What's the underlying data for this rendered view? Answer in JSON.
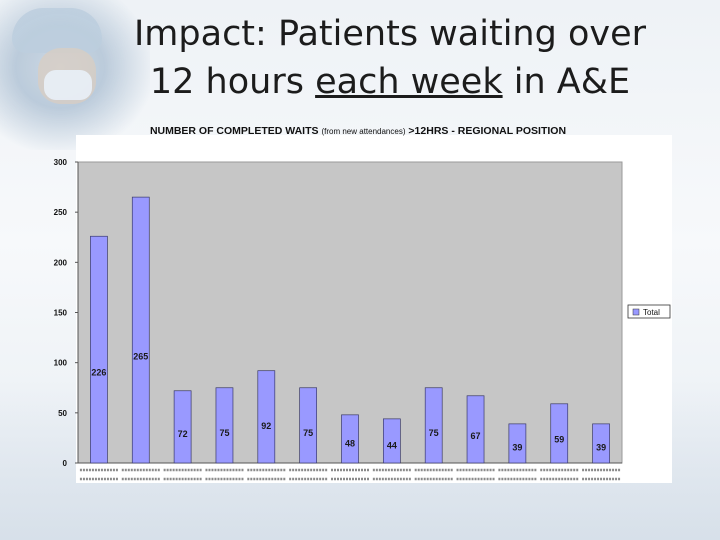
{
  "slide": {
    "title_part1": "Impact: Patients waiting over",
    "title_part2a": "12 hours ",
    "title_underlined": "each week",
    "title_part2b": " in A&E"
  },
  "chart_data": {
    "type": "bar",
    "title": "NUMBER OF COMPLETED WAITS (from new attendances) >12HRS - REGIONAL POSITION",
    "title_main": "NUMBER OF COMPLETED WAITS",
    "title_paren": "(from new attendances)",
    "title_tail": ">12HRS - REGIONAL POSITION",
    "ylim": [
      0,
      300
    ],
    "yticks": [
      "0",
      "50",
      "100",
      "150",
      "200",
      "250",
      "300"
    ],
    "grid": false,
    "legend_position": "right",
    "bar_color": "#9999ff",
    "series": [
      {
        "name": "Total",
        "values": [
          226,
          265,
          72,
          75,
          92,
          75,
          48,
          44,
          75,
          67,
          39,
          59,
          39
        ]
      }
    ],
    "data_labels": [
      "226",
      "265",
      "72",
      "75",
      "92",
      "75",
      "48",
      "44",
      "75",
      "67",
      "39",
      "59",
      "39"
    ]
  }
}
